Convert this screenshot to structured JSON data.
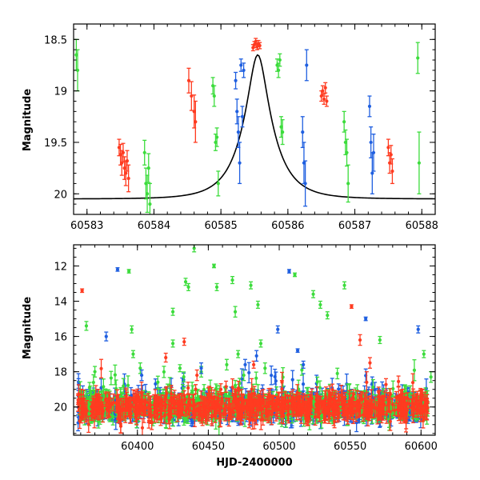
{
  "chart_data": [
    {
      "type": "scatter",
      "panel": "top",
      "xlabel": "",
      "ylabel": "Magnitude",
      "xlim": [
        60582.8,
        60588.2
      ],
      "ylim": [
        20.2,
        18.35
      ],
      "y_inverted": true,
      "grid": false,
      "legend": "none",
      "xticks": [
        "60583",
        "60584",
        "60585",
        "60586",
        "60587",
        "60588"
      ],
      "xtick_values": [
        60583,
        60584,
        60585,
        60586,
        60587,
        60588
      ],
      "yticks": [
        "18.5",
        "19",
        "19.5",
        "20"
      ],
      "ytick_values": [
        18.5,
        19.0,
        19.5,
        20.0
      ],
      "model_curve": {
        "kind": "microlensing",
        "t0": 60585.55,
        "peak_mag": 18.65,
        "baseline_mag": 20.05,
        "tE": 0.45,
        "color": "#000000"
      },
      "series": [
        {
          "color": "#ff3b20",
          "points": [
            [
              60583.48,
              19.55,
              0.08
            ],
            [
              60583.5,
              19.62,
              0.1
            ],
            [
              60583.52,
              19.7,
              0.12
            ],
            [
              60583.54,
              19.6,
              0.09
            ],
            [
              60583.56,
              19.75,
              0.11
            ],
            [
              60583.58,
              19.8,
              0.12
            ],
            [
              60583.6,
              19.68,
              0.1
            ],
            [
              60583.62,
              19.85,
              0.13
            ],
            [
              60584.52,
              18.9,
              0.12
            ],
            [
              60584.56,
              19.05,
              0.14
            ],
            [
              60584.6,
              19.2,
              0.16
            ],
            [
              60584.62,
              19.3,
              0.2
            ],
            [
              60585.48,
              18.58,
              0.03
            ],
            [
              60585.5,
              18.55,
              0.03
            ],
            [
              60585.52,
              18.52,
              0.03
            ],
            [
              60585.54,
              18.57,
              0.03
            ],
            [
              60585.56,
              18.54,
              0.03
            ],
            [
              60585.58,
              18.56,
              0.03
            ],
            [
              60586.5,
              19.05,
              0.05
            ],
            [
              60586.52,
              19.0,
              0.05
            ],
            [
              60586.54,
              19.08,
              0.05
            ],
            [
              60586.56,
              18.97,
              0.05
            ],
            [
              60586.58,
              19.1,
              0.05
            ],
            [
              60587.5,
              19.55,
              0.08
            ],
            [
              60587.52,
              19.7,
              0.1
            ],
            [
              60587.54,
              19.62,
              0.09
            ],
            [
              60587.56,
              19.78,
              0.12
            ]
          ]
        },
        {
          "color": "#3cdc3c",
          "points": [
            [
              60582.84,
              18.65,
              0.15
            ],
            [
              60582.86,
              18.8,
              0.2
            ],
            [
              60583.86,
              19.6,
              0.12
            ],
            [
              60583.88,
              19.9,
              0.15
            ],
            [
              60583.9,
              20.0,
              0.18
            ],
            [
              60583.92,
              19.75,
              0.14
            ],
            [
              60583.94,
              20.1,
              0.2
            ],
            [
              60584.88,
              18.95,
              0.08
            ],
            [
              60584.9,
              19.05,
              0.1
            ],
            [
              60584.92,
              19.5,
              0.08
            ],
            [
              60584.94,
              19.45,
              0.09
            ],
            [
              60584.96,
              19.9,
              0.12
            ],
            [
              60585.84,
              18.75,
              0.06
            ],
            [
              60585.86,
              18.8,
              0.07
            ],
            [
              60585.88,
              18.7,
              0.06
            ],
            [
              60585.9,
              19.35,
              0.1
            ],
            [
              60585.92,
              19.4,
              0.12
            ],
            [
              60586.84,
              19.3,
              0.1
            ],
            [
              60586.86,
              19.5,
              0.12
            ],
            [
              60586.88,
              19.6,
              0.13
            ],
            [
              60586.9,
              19.9,
              0.18
            ],
            [
              60587.94,
              18.68,
              0.15
            ],
            [
              60587.96,
              19.7,
              0.3
            ]
          ]
        },
        {
          "color": "#1f5fe0",
          "points": [
            [
              60585.22,
              18.9,
              0.08
            ],
            [
              60585.24,
              19.2,
              0.12
            ],
            [
              60585.26,
              19.4,
              0.15
            ],
            [
              60585.28,
              19.7,
              0.2
            ],
            [
              60585.3,
              18.75,
              0.06
            ],
            [
              60585.32,
              19.25,
              0.1
            ],
            [
              60585.34,
              18.8,
              0.07
            ],
            [
              60586.22,
              19.4,
              0.15
            ],
            [
              60586.24,
              19.7,
              0.2
            ],
            [
              60586.26,
              19.9,
              0.22
            ],
            [
              60586.28,
              18.75,
              0.15
            ],
            [
              60587.22,
              19.15,
              0.1
            ],
            [
              60587.24,
              19.5,
              0.15
            ],
            [
              60587.26,
              19.8,
              0.2
            ],
            [
              60587.28,
              19.6,
              0.18
            ]
          ]
        }
      ]
    },
    {
      "type": "scatter",
      "panel": "bottom",
      "xlabel": "HJD-2400000",
      "ylabel": "Magnitude",
      "xlim": [
        60355,
        60610
      ],
      "ylim": [
        21.6,
        10.8
      ],
      "y_inverted": true,
      "grid": false,
      "legend": "none",
      "xticks": [
        "60400",
        "60450",
        "60500",
        "60550",
        "60600"
      ],
      "xtick_values": [
        60400,
        60450,
        60500,
        60550,
        60600
      ],
      "yticks": [
        "12",
        "14",
        "16",
        "18",
        "20"
      ],
      "ytick_values": [
        12,
        14,
        16,
        18,
        20
      ],
      "baseline": {
        "mag": 20.0,
        "scatter": 0.55,
        "x_range": [
          60358,
          60605
        ],
        "colors": [
          "#1f5fe0",
          "#3cdc3c",
          "#ff3b20"
        ],
        "points_per_color": 700
      },
      "series": [
        {
          "color": "#ff3b20",
          "points": [
            [
              60361,
              13.4,
              0.1
            ],
            [
              60420,
              17.2,
              0.25
            ],
            [
              60433,
              16.3,
              0.2
            ],
            [
              60442,
              18.2,
              0.3
            ],
            [
              60551,
              14.3,
              0.1
            ],
            [
              60557,
              16.2,
              0.3
            ],
            [
              60564,
              17.5,
              0.3
            ],
            [
              60482,
              17.6,
              0.2
            ]
          ]
        },
        {
          "color": "#3cdc3c",
          "points": [
            [
              60364,
              15.4,
              0.25
            ],
            [
              60370,
              18.0,
              0.3
            ],
            [
              60394,
              12.3,
              0.1
            ],
            [
              60396,
              15.6,
              0.2
            ],
            [
              60397,
              17.0,
              0.2
            ],
            [
              60402,
              17.8,
              0.3
            ],
            [
              60425,
              14.6,
              0.2
            ],
            [
              60425,
              16.4,
              0.2
            ],
            [
              60430,
              17.8,
              0.2
            ],
            [
              60434,
              12.9,
              0.2
            ],
            [
              60436,
              13.2,
              0.2
            ],
            [
              60440,
              11.0,
              0.2
            ],
            [
              60445,
              18.0,
              0.3
            ],
            [
              60454,
              12.0,
              0.1
            ],
            [
              60456,
              13.2,
              0.2
            ],
            [
              60463,
              17.6,
              0.3
            ],
            [
              60467,
              12.8,
              0.2
            ],
            [
              60469,
              14.6,
              0.3
            ],
            [
              60471,
              17.0,
              0.2
            ],
            [
              60475,
              18.2,
              0.3
            ],
            [
              60480,
              13.1,
              0.2
            ],
            [
              60485,
              14.2,
              0.2
            ],
            [
              60487,
              16.4,
              0.2
            ],
            [
              60490,
              17.8,
              0.3
            ],
            [
              60511,
              12.5,
              0.1
            ],
            [
              60516,
              17.9,
              0.3
            ],
            [
              60524,
              13.6,
              0.2
            ],
            [
              60529,
              14.2,
              0.2
            ],
            [
              60534,
              14.8,
              0.2
            ],
            [
              60541,
              18.1,
              0.3
            ],
            [
              60546,
              13.1,
              0.2
            ],
            [
              60571,
              16.2,
              0.2
            ],
            [
              60602,
              17.0,
              0.2
            ],
            [
              60607,
              18.3,
              0.3
            ]
          ]
        },
        {
          "color": "#1f5fe0",
          "points": [
            [
              60378,
              16.0,
              0.25
            ],
            [
              60386,
              12.2,
              0.1
            ],
            [
              60403,
              18.2,
              0.3
            ],
            [
              60445,
              17.8,
              0.3
            ],
            [
              60476,
              17.6,
              0.3
            ],
            [
              60484,
              17.1,
              0.3
            ],
            [
              60499,
              15.6,
              0.2
            ],
            [
              60507,
              12.3,
              0.1
            ],
            [
              60513,
              16.8,
              0.1
            ],
            [
              60517,
              17.6,
              0.2
            ],
            [
              60561,
              15.0,
              0.1
            ],
            [
              60598,
              15.6,
              0.2
            ]
          ]
        }
      ]
    }
  ]
}
